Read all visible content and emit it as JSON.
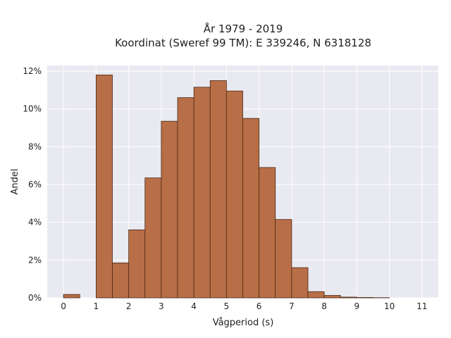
{
  "chart_data": {
    "type": "bar",
    "title": "År 1979 - 2019",
    "subtitle": "Koordinat (Sweref 99 TM): E 339246, N 6318128",
    "xlabel": "Vågperiod (s)",
    "ylabel": "Andel",
    "x_ticks": [
      "0",
      "1",
      "2",
      "3",
      "4",
      "5",
      "6",
      "7",
      "8",
      "9",
      "10",
      "11"
    ],
    "y_ticks": [
      "0%",
      "2%",
      "4%",
      "6%",
      "8%",
      "10%",
      "12%"
    ],
    "xlim": [
      -0.5,
      11.5
    ],
    "ylim": [
      0,
      12.3
    ],
    "bin_width": 0.5,
    "bins": [
      {
        "start": 0.0,
        "value": 0.18
      },
      {
        "start": 0.5,
        "value": 0.0
      },
      {
        "start": 1.0,
        "value": 11.8
      },
      {
        "start": 1.5,
        "value": 1.85
      },
      {
        "start": 2.0,
        "value": 3.6
      },
      {
        "start": 2.5,
        "value": 6.35
      },
      {
        "start": 3.0,
        "value": 9.35
      },
      {
        "start": 3.5,
        "value": 10.6
      },
      {
        "start": 4.0,
        "value": 11.15
      },
      {
        "start": 4.5,
        "value": 11.5
      },
      {
        "start": 5.0,
        "value": 10.95
      },
      {
        "start": 5.5,
        "value": 9.5
      },
      {
        "start": 6.0,
        "value": 6.9
      },
      {
        "start": 6.5,
        "value": 4.15
      },
      {
        "start": 7.0,
        "value": 1.6
      },
      {
        "start": 7.5,
        "value": 0.33
      },
      {
        "start": 8.0,
        "value": 0.13
      },
      {
        "start": 8.5,
        "value": 0.04
      },
      {
        "start": 9.0,
        "value": 0.02
      },
      {
        "start": 9.5,
        "value": 0.01
      }
    ],
    "grid": true,
    "bar_color": "#b86e46",
    "bar_edge_color": "#4a2a18",
    "plot_background": "#e9e9f1",
    "grid_color": "#ffffff"
  }
}
